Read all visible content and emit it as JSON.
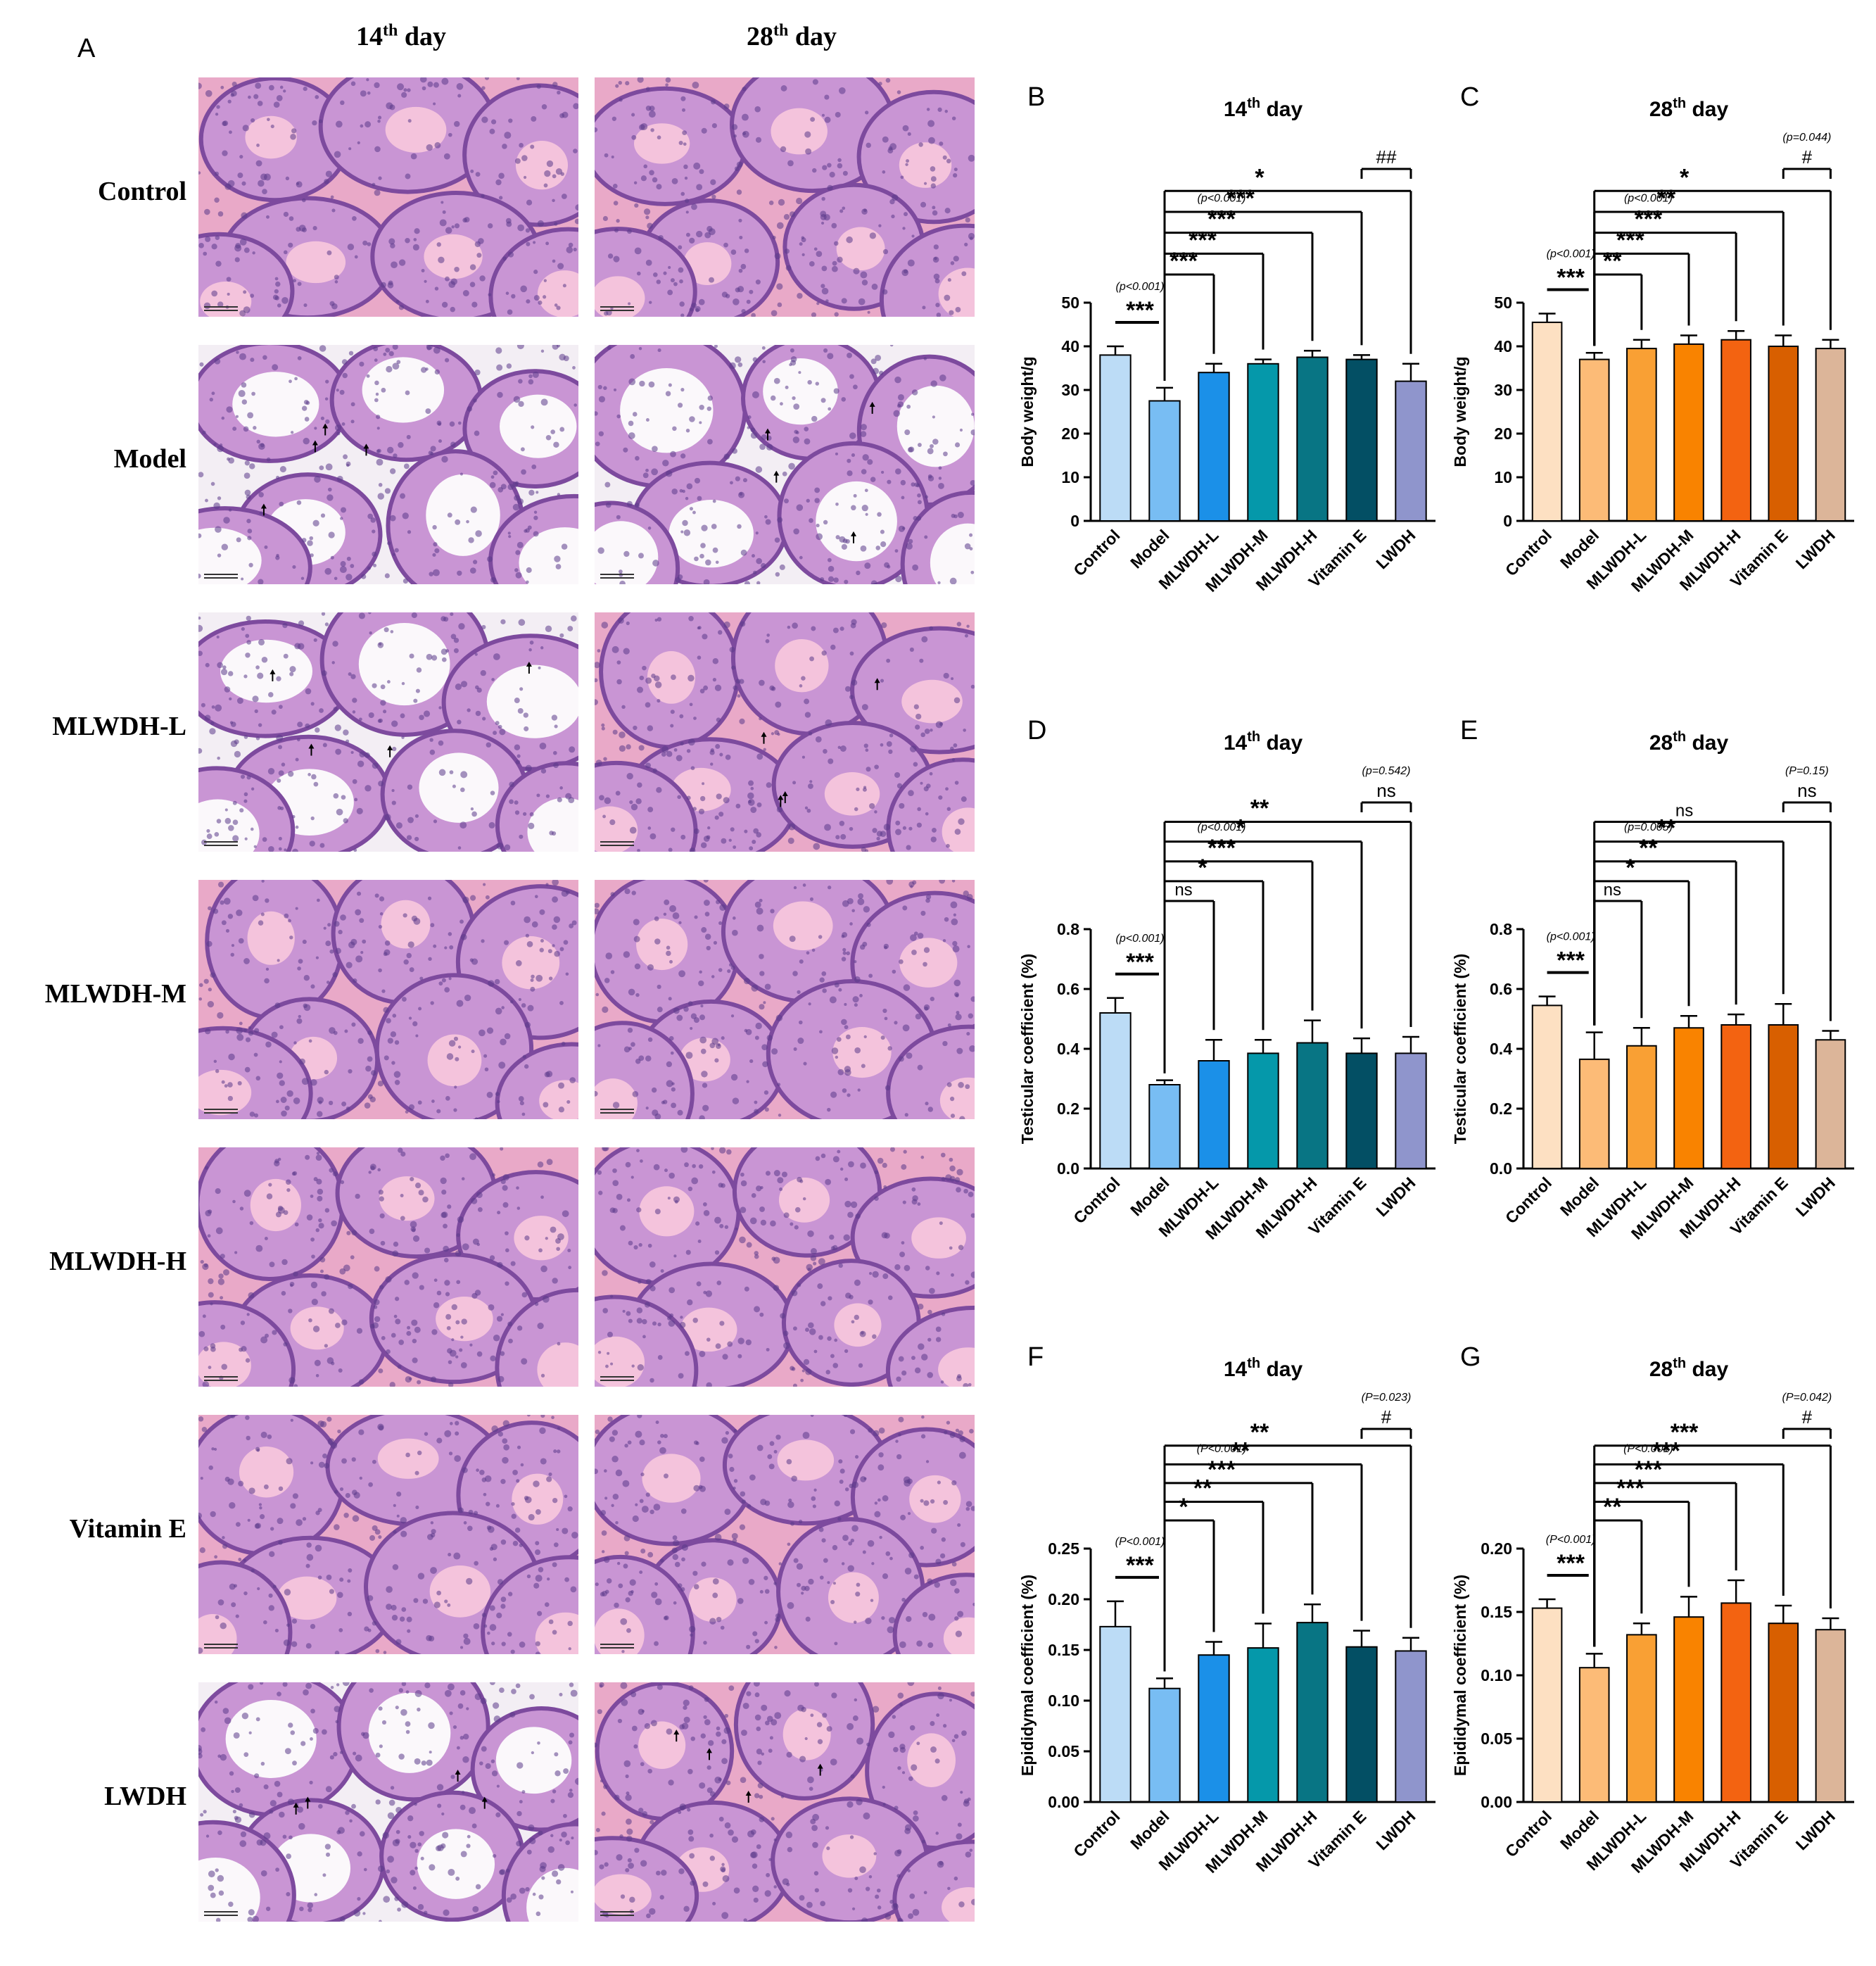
{
  "panel_A": {
    "letter": "A",
    "columns": [
      {
        "prefix": "14",
        "sup": "th",
        "suffix": " day"
      },
      {
        "prefix": "28",
        "sup": "th",
        "suffix": " day"
      }
    ],
    "rows": [
      "Control",
      "Model",
      "MLWDH-L",
      "MLWDH-M",
      "MLWDH-H",
      "Vitamin E",
      "LWDH"
    ],
    "arrows_visible_rows": [
      "Model",
      "MLWDH-L",
      "LWDH"
    ]
  },
  "colors": {
    "blue_series": [
      "#bcdcf6",
      "#78bdf3",
      "#1b90e8",
      "#0598aa",
      "#087584",
      "#034f64",
      "#8f95cc"
    ],
    "orange_series": [
      "#fde0c2",
      "#fcbb77",
      "#f9a034",
      "#f98300",
      "#f36311",
      "#d85f00",
      "#dcb599"
    ]
  },
  "chart_data": [
    {
      "id": "B",
      "type": "bar",
      "title": {
        "prefix": "14",
        "sup": "th",
        "suffix": " day"
      },
      "ylabel": "Body weight/g",
      "ylim": [
        0,
        50
      ],
      "yticks": [
        "0",
        "10",
        "20",
        "30",
        "40",
        "50"
      ],
      "categories": [
        "Control",
        "Model",
        "MLWDH-L",
        "MLWDH-M",
        "MLWDH-H",
        "Vitamin E",
        "LWDH"
      ],
      "values": [
        38,
        27.5,
        34,
        36,
        37.5,
        37,
        32
      ],
      "errors": [
        2,
        3,
        2,
        1,
        1.5,
        1,
        4
      ],
      "palette": "blue",
      "annotations": [
        {
          "from": 0,
          "to": 1,
          "text": "***",
          "p": "(p<0.001)",
          "style": "short"
        },
        {
          "from": 1,
          "to": 2,
          "text": "***"
        },
        {
          "from": 1,
          "to": 3,
          "text": "***"
        },
        {
          "from": 1,
          "to": 4,
          "text": "***",
          "p": "(p<0.001)"
        },
        {
          "from": 1,
          "to": 5,
          "text": "***"
        },
        {
          "from": 1,
          "to": 6,
          "text": "*"
        },
        {
          "from": 5,
          "to": 6,
          "text": "##",
          "style": "hash"
        }
      ]
    },
    {
      "id": "C",
      "type": "bar",
      "title": {
        "prefix": "28",
        "sup": "th",
        "suffix": " day"
      },
      "ylabel": "Body weight/g",
      "ylim": [
        0,
        50
      ],
      "yticks": [
        "0",
        "10",
        "20",
        "30",
        "40",
        "50"
      ],
      "categories": [
        "Control",
        "Model",
        "MLWDH-L",
        "MLWDH-M",
        "MLWDH-H",
        "Vitamin E",
        "LWDH"
      ],
      "values": [
        45.5,
        37,
        39.5,
        40.5,
        41.5,
        40,
        39.5
      ],
      "errors": [
        2,
        1.5,
        2,
        2,
        2,
        2.5,
        2
      ],
      "palette": "orange",
      "annotations": [
        {
          "from": 0,
          "to": 1,
          "text": "***",
          "p": "(p<0.001)",
          "style": "short"
        },
        {
          "from": 1,
          "to": 2,
          "text": "**"
        },
        {
          "from": 1,
          "to": 3,
          "text": "***"
        },
        {
          "from": 1,
          "to": 4,
          "text": "***",
          "p": "(p<0.001)"
        },
        {
          "from": 1,
          "to": 5,
          "text": "**"
        },
        {
          "from": 1,
          "to": 6,
          "text": "*"
        },
        {
          "from": 5,
          "to": 6,
          "text": "#",
          "p": "(p=0.044)",
          "style": "hash"
        }
      ]
    },
    {
      "id": "D",
      "type": "bar",
      "title": {
        "prefix": "14",
        "sup": "th",
        "suffix": " day"
      },
      "ylabel": "Testicular coefficient (%)",
      "ylim": [
        0,
        0.8
      ],
      "yticks": [
        "0.0",
        "0.2",
        "0.4",
        "0.6",
        "0.8"
      ],
      "categories": [
        "Control",
        "Model",
        "MLWDH-L",
        "MLWDH-M",
        "MLWDH-H",
        "Vitamin E",
        "LWDH"
      ],
      "values": [
        0.52,
        0.28,
        0.36,
        0.385,
        0.42,
        0.385,
        0.385
      ],
      "errors": [
        0.05,
        0.015,
        0.07,
        0.045,
        0.075,
        0.05,
        0.055
      ],
      "palette": "blue",
      "annotations": [
        {
          "from": 0,
          "to": 1,
          "text": "***",
          "p": "(p<0.001)",
          "style": "short"
        },
        {
          "from": 1,
          "to": 2,
          "text": "ns"
        },
        {
          "from": 1,
          "to": 3,
          "text": "*"
        },
        {
          "from": 1,
          "to": 4,
          "text": "***",
          "p": "(p<0.001)"
        },
        {
          "from": 1,
          "to": 5,
          "text": "*"
        },
        {
          "from": 1,
          "to": 6,
          "text": "**"
        },
        {
          "from": 5,
          "to": 6,
          "text": "ns",
          "p": "(p=0.542)",
          "style": "hash"
        }
      ]
    },
    {
      "id": "E",
      "type": "bar",
      "title": {
        "prefix": "28",
        "sup": "th",
        "suffix": " day"
      },
      "ylabel": "Testicular coefficient (%)",
      "ylim": [
        0,
        0.8
      ],
      "yticks": [
        "0.0",
        "0.2",
        "0.4",
        "0.6",
        "0.8"
      ],
      "categories": [
        "Control",
        "Model",
        "MLWDH-L",
        "MLWDH-M",
        "MLWDH-H",
        "Vitamin E",
        "LWDH"
      ],
      "values": [
        0.545,
        0.365,
        0.41,
        0.47,
        0.48,
        0.48,
        0.43
      ],
      "errors": [
        0.03,
        0.09,
        0.06,
        0.04,
        0.035,
        0.07,
        0.03
      ],
      "palette": "orange",
      "annotations": [
        {
          "from": 0,
          "to": 1,
          "text": "***",
          "p": "(p<0.001)",
          "style": "short"
        },
        {
          "from": 1,
          "to": 2,
          "text": "ns"
        },
        {
          "from": 1,
          "to": 3,
          "text": "*"
        },
        {
          "from": 1,
          "to": 4,
          "text": "**",
          "p": "(p=0.005)"
        },
        {
          "from": 1,
          "to": 5,
          "text": "**"
        },
        {
          "from": 1,
          "to": 6,
          "text": "ns"
        },
        {
          "from": 5,
          "to": 6,
          "text": "ns",
          "p": "(P=0.15)",
          "style": "hash"
        }
      ]
    },
    {
      "id": "F",
      "type": "bar",
      "title": {
        "prefix": "14",
        "sup": "th",
        "suffix": " day"
      },
      "ylabel": "Epididymal coefficient (%)",
      "ylim": [
        0,
        0.25
      ],
      "yticks": [
        "0.00",
        "0.05",
        "0.10",
        "0.15",
        "0.20",
        "0.25"
      ],
      "categories": [
        "Control",
        "Model",
        "MLWDH-L",
        "MLWDH-M",
        "MLWDH-H",
        "Vitamin E",
        "LWDH"
      ],
      "values": [
        0.173,
        0.112,
        0.145,
        0.152,
        0.177,
        0.153,
        0.149
      ],
      "errors": [
        0.025,
        0.01,
        0.013,
        0.024,
        0.018,
        0.016,
        0.013
      ],
      "palette": "blue",
      "annotations": [
        {
          "from": 0,
          "to": 1,
          "text": "***",
          "p": "(P<0.001)",
          "style": "short"
        },
        {
          "from": 1,
          "to": 2,
          "text": "*"
        },
        {
          "from": 1,
          "to": 3,
          "text": "**"
        },
        {
          "from": 1,
          "to": 4,
          "text": "***",
          "p": "(P<0.001)"
        },
        {
          "from": 1,
          "to": 5,
          "text": "**"
        },
        {
          "from": 1,
          "to": 6,
          "text": "**"
        },
        {
          "from": 5,
          "to": 6,
          "text": "#",
          "p": "(P=0.023)",
          "style": "hash"
        }
      ]
    },
    {
      "id": "G",
      "type": "bar",
      "title": {
        "prefix": "28",
        "sup": "th",
        "suffix": " day"
      },
      "ylabel": "Epididymal coefficient (%)",
      "ylim": [
        0,
        0.2
      ],
      "yticks": [
        "0.00",
        "0.05",
        "0.10",
        "0.15",
        "0.20"
      ],
      "categories": [
        "Control",
        "Model",
        "MLWDH-L",
        "MLWDH-M",
        "MLWDH-H",
        "Vitamin E",
        "LWDH"
      ],
      "values": [
        0.153,
        0.106,
        0.132,
        0.146,
        0.157,
        0.141,
        0.136
      ],
      "errors": [
        0.007,
        0.011,
        0.009,
        0.016,
        0.018,
        0.014,
        0.009
      ],
      "palette": "orange",
      "annotations": [
        {
          "from": 0,
          "to": 1,
          "text": "***",
          "p": "(P<0.001)",
          "style": "short"
        },
        {
          "from": 1,
          "to": 2,
          "text": "**"
        },
        {
          "from": 1,
          "to": 3,
          "text": "***"
        },
        {
          "from": 1,
          "to": 4,
          "text": "***",
          "p": "(P<0.001)"
        },
        {
          "from": 1,
          "to": 5,
          "text": "***"
        },
        {
          "from": 1,
          "to": 6,
          "text": "***"
        },
        {
          "from": 5,
          "to": 6,
          "text": "#",
          "p": "(P=0.042)",
          "style": "hash"
        }
      ]
    }
  ]
}
